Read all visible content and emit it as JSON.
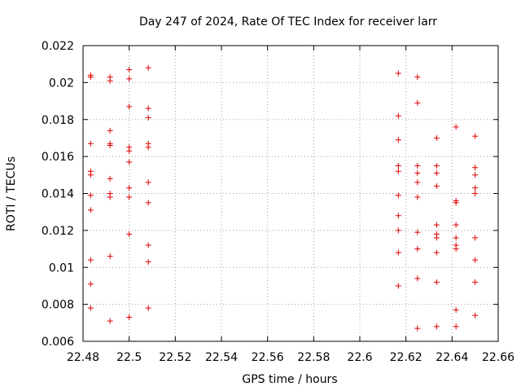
{
  "chart_data": {
    "type": "scatter",
    "title": "Day 247 of 2024, Rate Of TEC Index for receiver larr",
    "xlabel": "GPS time / hours",
    "ylabel": "ROTI / TECUs",
    "xlim": [
      22.48,
      22.66
    ],
    "ylim": [
      0.006,
      0.022
    ],
    "xticks": [
      22.48,
      22.5,
      22.52,
      22.54,
      22.56,
      22.58,
      22.6,
      22.62,
      22.64,
      22.66
    ],
    "xtick_labels": [
      "22.48",
      "22.5",
      "22.52",
      "22.54",
      "22.56",
      "22.58",
      "22.6",
      "22.62",
      "22.64",
      "22.66"
    ],
    "yticks": [
      0.006,
      0.008,
      0.01,
      0.012,
      0.014,
      0.016,
      0.018,
      0.02,
      0.022
    ],
    "ytick_labels": [
      "0.006",
      "0.008",
      "0.01",
      "0.012",
      "0.014",
      "0.016",
      "0.018",
      "0.02",
      "0.022"
    ],
    "grid": true,
    "marker": "+",
    "color": "#e00000",
    "series": [
      {
        "name": "ROTI",
        "points": [
          [
            22.4833,
            0.0204
          ],
          [
            22.4833,
            0.0203
          ],
          [
            22.4833,
            0.0167
          ],
          [
            22.4833,
            0.0152
          ],
          [
            22.4833,
            0.015
          ],
          [
            22.4833,
            0.0139
          ],
          [
            22.4833,
            0.0131
          ],
          [
            22.4833,
            0.0104
          ],
          [
            22.4833,
            0.0091
          ],
          [
            22.4833,
            0.0078
          ],
          [
            22.4917,
            0.0203
          ],
          [
            22.4917,
            0.0201
          ],
          [
            22.4917,
            0.0174
          ],
          [
            22.4917,
            0.0167
          ],
          [
            22.4917,
            0.0166
          ],
          [
            22.4917,
            0.0148
          ],
          [
            22.4917,
            0.014
          ],
          [
            22.4917,
            0.0138
          ],
          [
            22.4917,
            0.0106
          ],
          [
            22.4917,
            0.0071
          ],
          [
            22.5,
            0.0207
          ],
          [
            22.5,
            0.0202
          ],
          [
            22.5,
            0.0187
          ],
          [
            22.5,
            0.0165
          ],
          [
            22.5,
            0.0163
          ],
          [
            22.5,
            0.0157
          ],
          [
            22.5,
            0.0143
          ],
          [
            22.5,
            0.0138
          ],
          [
            22.5,
            0.0118
          ],
          [
            22.5,
            0.0073
          ],
          [
            22.5083,
            0.0208
          ],
          [
            22.5083,
            0.0186
          ],
          [
            22.5083,
            0.0181
          ],
          [
            22.5083,
            0.0167
          ],
          [
            22.5083,
            0.0165
          ],
          [
            22.5083,
            0.0146
          ],
          [
            22.5083,
            0.0135
          ],
          [
            22.5083,
            0.0112
          ],
          [
            22.5083,
            0.0103
          ],
          [
            22.5083,
            0.0078
          ],
          [
            22.6167,
            0.0205
          ],
          [
            22.6167,
            0.0182
          ],
          [
            22.6167,
            0.0169
          ],
          [
            22.6167,
            0.0155
          ],
          [
            22.6167,
            0.0152
          ],
          [
            22.6167,
            0.0139
          ],
          [
            22.6167,
            0.0128
          ],
          [
            22.6167,
            0.012
          ],
          [
            22.6167,
            0.0108
          ],
          [
            22.6167,
            0.009
          ],
          [
            22.625,
            0.0203
          ],
          [
            22.625,
            0.0189
          ],
          [
            22.625,
            0.0155
          ],
          [
            22.625,
            0.0151
          ],
          [
            22.625,
            0.0146
          ],
          [
            22.625,
            0.0138
          ],
          [
            22.625,
            0.0119
          ],
          [
            22.625,
            0.011
          ],
          [
            22.625,
            0.0094
          ],
          [
            22.625,
            0.0067
          ],
          [
            22.6333,
            0.017
          ],
          [
            22.6333,
            0.0155
          ],
          [
            22.6333,
            0.0151
          ],
          [
            22.6333,
            0.0144
          ],
          [
            22.6333,
            0.0123
          ],
          [
            22.6333,
            0.0118
          ],
          [
            22.6333,
            0.0116
          ],
          [
            22.6333,
            0.0108
          ],
          [
            22.6333,
            0.0092
          ],
          [
            22.6333,
            0.0068
          ],
          [
            22.6417,
            0.0176
          ],
          [
            22.6417,
            0.0136
          ],
          [
            22.6417,
            0.0135
          ],
          [
            22.6417,
            0.0123
          ],
          [
            22.6417,
            0.0116
          ],
          [
            22.6417,
            0.0112
          ],
          [
            22.6417,
            0.011
          ],
          [
            22.6417,
            0.0077
          ],
          [
            22.6417,
            0.0068
          ],
          [
            22.65,
            0.0171
          ],
          [
            22.65,
            0.0154
          ],
          [
            22.65,
            0.015
          ],
          [
            22.65,
            0.0143
          ],
          [
            22.65,
            0.014
          ],
          [
            22.65,
            0.0116
          ],
          [
            22.65,
            0.0104
          ],
          [
            22.65,
            0.0092
          ],
          [
            22.65,
            0.0074
          ]
        ]
      }
    ]
  }
}
